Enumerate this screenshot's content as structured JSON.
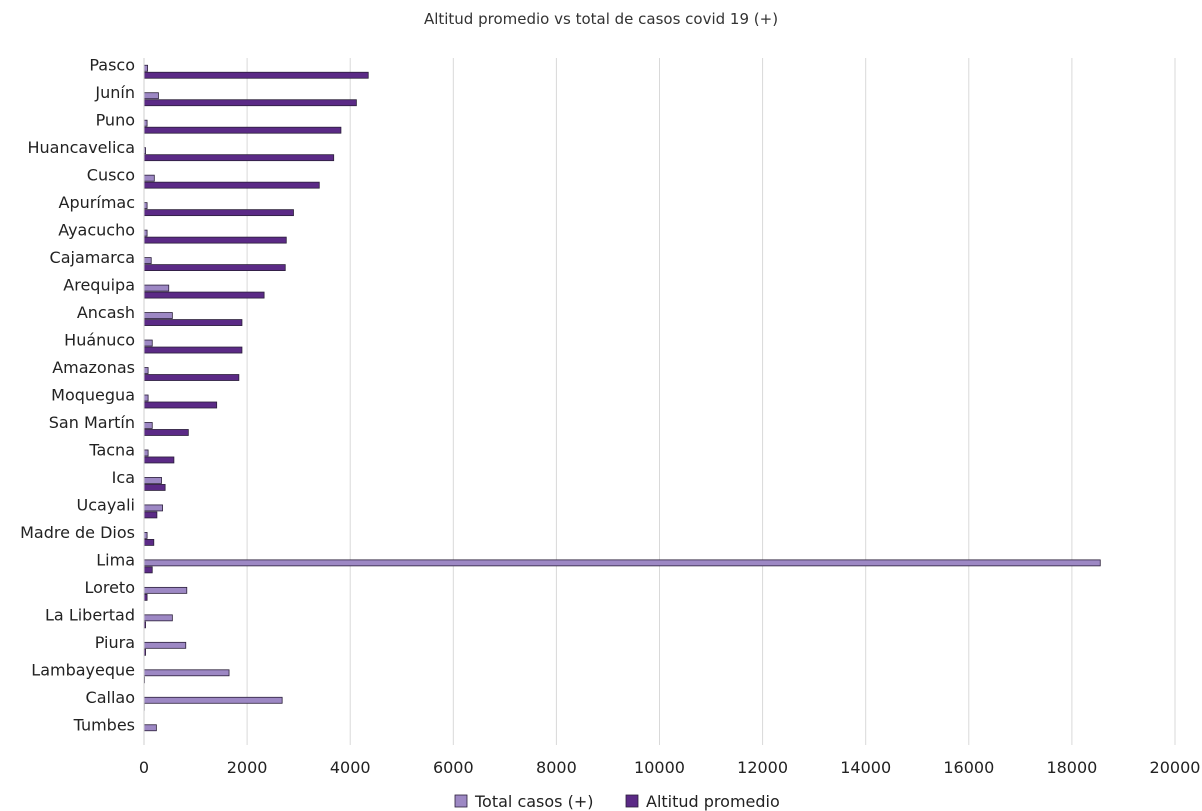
{
  "chart_data": {
    "type": "bar",
    "orientation": "horizontal",
    "title": "Altitud promedio vs total de casos covid 19 (+)",
    "xlabel": "",
    "ylabel": "",
    "xlim": [
      0,
      20000
    ],
    "xticks": [
      0,
      2000,
      4000,
      6000,
      8000,
      10000,
      12000,
      14000,
      16000,
      18000,
      20000
    ],
    "grid": "vertical",
    "legend_position": "bottom",
    "categories": [
      "Pasco",
      "Junín",
      "Puno",
      "Huancavelica",
      "Cusco",
      "Apurímac",
      "Ayacucho",
      "Cajamarca",
      "Arequipa",
      "Ancash",
      "Huánuco",
      "Amazonas",
      "Moquegua",
      "San Martín",
      "Tacna",
      "Ica",
      "Ucayali",
      "Madre de Dios",
      "Lima",
      "Loreto",
      "La Libertad",
      "Piura",
      "Lambayeque",
      "Callao",
      "Tumbes"
    ],
    "series": [
      {
        "name": "Total casos (+)",
        "color": "#9d88c4",
        "values": [
          70,
          280,
          60,
          30,
          200,
          60,
          60,
          140,
          480,
          550,
          160,
          80,
          80,
          160,
          80,
          340,
          360,
          60,
          18550,
          830,
          550,
          810,
          1650,
          2680,
          240
        ]
      },
      {
        "name": "Altitud promedio",
        "color": "#5b2a86",
        "values": [
          4350,
          4120,
          3820,
          3680,
          3400,
          2900,
          2760,
          2740,
          2330,
          1900,
          1900,
          1840,
          1410,
          860,
          580,
          410,
          250,
          190,
          160,
          60,
          30,
          30,
          10,
          5,
          0
        ]
      }
    ]
  }
}
